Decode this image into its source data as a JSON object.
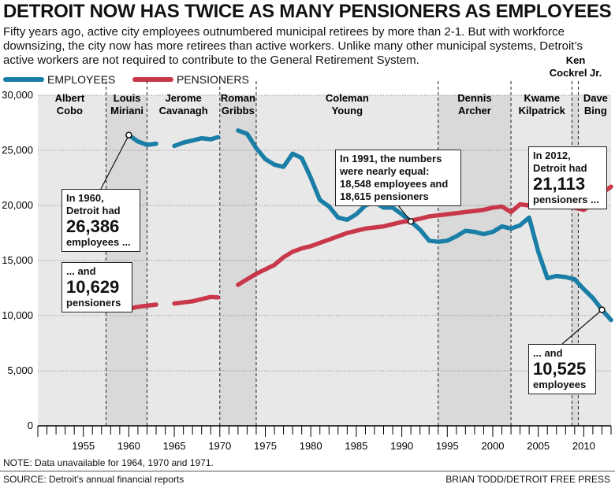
{
  "title": "DETROIT NOW HAS TWICE AS MANY PENSIONERS AS EMPLOYEES",
  "subtitle": "Fifty years ago, active city employees outnumbered municipal retirees by more than 2-1. But with workforce downsizing, the city now has more retirees than active workers. Unlike many other municipal systems, Detroit’s active workers are not required to contribute to the General Retirement System.",
  "legend": {
    "employees": "EMPLOYEES",
    "pensioners": "PENSIONERS"
  },
  "colors": {
    "employees": "#1a7ea6",
    "pensioners": "#c8384a",
    "band": "#d9d9d9",
    "band_light": "#e8e8e8"
  },
  "note": "NOTE: Data unavailable for 1964, 1970 and 1971.",
  "source": "SOURCE: Detroit’s annual financial reports",
  "credit": "BRIAN TODD/DETROIT FREE PRESS",
  "callouts": {
    "c1960e": {
      "line1": "In 1960,",
      "line2": "Detroit had",
      "big": "26,386",
      "line3": "employees ..."
    },
    "c1960p": {
      "line1": "... and",
      "big": "10,629",
      "line3": "pensioners"
    },
    "c1991": {
      "line1": "In 1991, the numbers",
      "line2": "were nearly equal:",
      "line3": "18,548 employees and",
      "line4": "18,615 pensioners"
    },
    "c2012p": {
      "line1": "In 2012,",
      "line2": "Detroit had",
      "big": "21,113",
      "line3": "pensioners ..."
    },
    "c2012e": {
      "line1": "... and",
      "big": "10,525",
      "line3": "employees"
    }
  },
  "chart_data": {
    "type": "line",
    "ylim": [
      0,
      30000
    ],
    "xlim": [
      1950,
      2013
    ],
    "yticks": [
      0,
      5000,
      10000,
      15000,
      20000,
      25000,
      30000
    ],
    "ytick_labels": [
      "0",
      "5,000",
      "10,000",
      "15,000",
      "20,000",
      "25,000",
      "30,000"
    ],
    "xticks": [
      1955,
      1960,
      1965,
      1970,
      1975,
      1980,
      1985,
      1990,
      1995,
      2000,
      2005,
      2010
    ],
    "grid": true,
    "legend_position": "top-left",
    "mayors": [
      {
        "name": [
          "Albert",
          "Cobo"
        ],
        "start": 1950,
        "end": 1957.5,
        "label_x": 1953.5
      },
      {
        "name": [
          "Louis",
          "Miriani"
        ],
        "start": 1957.5,
        "end": 1962,
        "label_x": 1959.8
      },
      {
        "name": [
          "Jerome",
          "Cavanagh"
        ],
        "start": 1962,
        "end": 1970,
        "label_x": 1966
      },
      {
        "name": [
          "Roman",
          "Gribbs"
        ],
        "start": 1970,
        "end": 1974,
        "label_x": 1972
      },
      {
        "name": [
          "Coleman",
          "Young"
        ],
        "start": 1974,
        "end": 1994,
        "label_x": 1984
      },
      {
        "name": [
          "Dennis",
          "Archer"
        ],
        "start": 1994,
        "end": 2002,
        "label_x": 1998
      },
      {
        "name": [
          "Kwame",
          "Kilpatrick"
        ],
        "start": 2002,
        "end": 2008.7,
        "label_x": 2005.4
      },
      {
        "name": [
          "Ken",
          "Cockrel Jr."
        ],
        "start": 2008.7,
        "end": 2009.4,
        "label_x": 2009.1,
        "raised": true
      },
      {
        "name": [
          "Dave",
          "Bing"
        ],
        "start": 2009.4,
        "end": 2013,
        "label_x": 2011.3
      }
    ],
    "series": [
      {
        "name": "EMPLOYEES",
        "segments": [
          [
            [
              1960,
              26386
            ],
            [
              1961,
              25800
            ],
            [
              1962,
              25500
            ],
            [
              1963,
              25600
            ]
          ],
          [
            [
              1965,
              25400
            ],
            [
              1966,
              25700
            ],
            [
              1967,
              25900
            ],
            [
              1968,
              26100
            ],
            [
              1969,
              26000
            ],
            [
              1969.8,
              26200
            ]
          ],
          [
            [
              1972,
              26800
            ],
            [
              1973,
              26500
            ],
            [
              1974,
              25200
            ],
            [
              1975,
              24200
            ],
            [
              1976,
              23700
            ],
            [
              1977,
              23500
            ],
            [
              1978,
              24700
            ],
            [
              1979,
              24300
            ],
            [
              1980,
              22500
            ],
            [
              1981,
              20500
            ],
            [
              1982,
              19900
            ],
            [
              1983,
              18900
            ],
            [
              1984,
              18700
            ],
            [
              1985,
              19200
            ],
            [
              1986,
              20000
            ],
            [
              1987,
              20300
            ],
            [
              1988,
              19800
            ],
            [
              1989,
              19800
            ],
            [
              1990,
              19200
            ],
            [
              1991,
              18548
            ],
            [
              1992,
              17800
            ],
            [
              1993,
              16800
            ],
            [
              1994,
              16700
            ],
            [
              1995,
              16800
            ],
            [
              1996,
              17200
            ],
            [
              1997,
              17700
            ],
            [
              1998,
              17600
            ],
            [
              1999,
              17400
            ],
            [
              2000,
              17600
            ],
            [
              2001,
              18100
            ],
            [
              2002,
              17900
            ],
            [
              2003,
              18200
            ],
            [
              2004,
              18900
            ],
            [
              2005,
              15800
            ],
            [
              2006,
              13400
            ],
            [
              2007,
              13600
            ],
            [
              2008,
              13500
            ],
            [
              2009,
              13300
            ],
            [
              2010,
              12400
            ],
            [
              2011,
              11600
            ],
            [
              2012,
              10525
            ],
            [
              2013,
              9600
            ]
          ]
        ]
      },
      {
        "name": "PENSIONERS",
        "segments": [
          [
            [
              1960,
              10629
            ],
            [
              1961,
              10800
            ],
            [
              1962,
              10900
            ],
            [
              1963,
              11000
            ]
          ],
          [
            [
              1965,
              11100
            ],
            [
              1966,
              11200
            ],
            [
              1967,
              11300
            ],
            [
              1968,
              11500
            ],
            [
              1969,
              11700
            ],
            [
              1969.8,
              11650
            ]
          ],
          [
            [
              1972,
              12800
            ],
            [
              1973,
              13300
            ],
            [
              1974,
              13800
            ],
            [
              1975,
              14200
            ],
            [
              1976,
              14600
            ],
            [
              1977,
              15300
            ],
            [
              1978,
              15800
            ],
            [
              1979,
              16100
            ],
            [
              1980,
              16300
            ],
            [
              1981,
              16600
            ],
            [
              1982,
              16900
            ],
            [
              1983,
              17200
            ],
            [
              1984,
              17500
            ],
            [
              1985,
              17700
            ],
            [
              1986,
              17900
            ],
            [
              1987,
              18000
            ],
            [
              1988,
              18100
            ],
            [
              1989,
              18300
            ],
            [
              1990,
              18500
            ],
            [
              1991,
              18615
            ],
            [
              1992,
              18800
            ],
            [
              1993,
              19000
            ],
            [
              1994,
              19100
            ],
            [
              1995,
              19200
            ],
            [
              1996,
              19300
            ],
            [
              1997,
              19400
            ],
            [
              1998,
              19500
            ],
            [
              1999,
              19600
            ],
            [
              2000,
              19800
            ],
            [
              2001,
              19900
            ],
            [
              2002,
              19400
            ],
            [
              2003,
              20100
            ],
            [
              2004,
              20000
            ],
            [
              2005,
              20000
            ],
            [
              2006,
              20400
            ],
            [
              2007,
              20300
            ],
            [
              2008,
              20100
            ],
            [
              2009,
              19800
            ],
            [
              2010,
              19600
            ],
            [
              2011,
              20200
            ],
            [
              2012,
              21113
            ],
            [
              2013,
              21700
            ]
          ]
        ]
      }
    ]
  }
}
